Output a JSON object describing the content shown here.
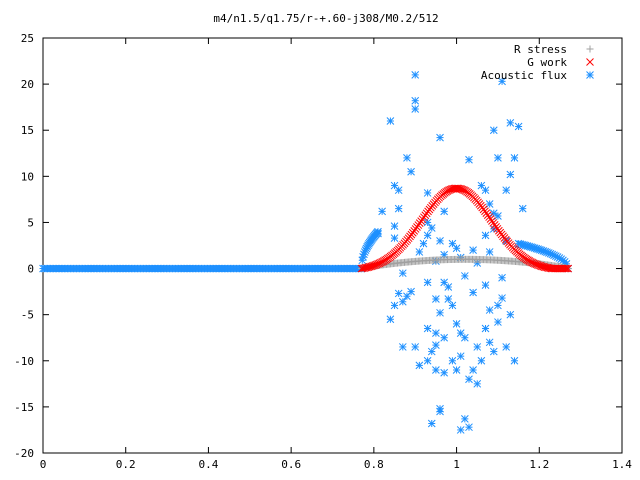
{
  "chart_data": {
    "type": "scatter",
    "title": "m4/n1.5/q1.75/r-+.60-j308/M0.2/512",
    "xlabel": "",
    "ylabel": "",
    "xlim": [
      0,
      1.4
    ],
    "ylim": [
      -20,
      25
    ],
    "x_ticks": [
      "0",
      "0.2",
      "0.4",
      "0.6",
      "0.8",
      "1",
      "1.2",
      "1.4"
    ],
    "y_ticks": [
      "-20",
      "-15",
      "-10",
      "-5",
      "0",
      "5",
      "10",
      "15",
      "20",
      "25"
    ],
    "grid": false,
    "legend_position": "top-right",
    "series": [
      {
        "name": "R stress",
        "marker": "plus",
        "color": "#a0a0a0",
        "curve": "bump",
        "x_range": [
          0.77,
          1.27
        ],
        "peak": 1.0,
        "n_points": 150
      },
      {
        "name": "G work",
        "marker": "x",
        "color": "#ff0000",
        "curve": "gaussian",
        "x_range": [
          0.77,
          1.27
        ],
        "peak_x": 1.0,
        "peak": 8.7,
        "n_points": 150
      },
      {
        "name": "Acoustic flux",
        "marker": "star",
        "color": "#1e90ff",
        "flat_segment": {
          "x_range": [
            0.0,
            0.77
          ],
          "y": 0,
          "n_points": 210
        },
        "left_arc": {
          "x_range": [
            0.77,
            0.81
          ],
          "y_end": 4.0
        },
        "right_arc": {
          "x_range": [
            1.15,
            1.27
          ],
          "y_start": 2.7
        },
        "points": [
          [
            0.9,
            21.0
          ],
          [
            1.11,
            20.3
          ],
          [
            0.9,
            18.2
          ],
          [
            0.9,
            17.3
          ],
          [
            0.84,
            16.0
          ],
          [
            1.13,
            15.8
          ],
          [
            1.15,
            15.4
          ],
          [
            1.09,
            15.0
          ],
          [
            0.96,
            14.2
          ],
          [
            1.1,
            12.0
          ],
          [
            0.88,
            12.0
          ],
          [
            1.14,
            12.0
          ],
          [
            1.03,
            11.8
          ],
          [
            0.89,
            10.5
          ],
          [
            1.13,
            10.2
          ],
          [
            0.85,
            9.0
          ],
          [
            1.06,
            9.0
          ],
          [
            0.86,
            8.5
          ],
          [
            1.07,
            8.5
          ],
          [
            0.93,
            8.2
          ],
          [
            1.12,
            8.5
          ],
          [
            1.08,
            7.0
          ],
          [
            0.86,
            6.5
          ],
          [
            1.16,
            6.5
          ],
          [
            0.82,
            6.2
          ],
          [
            0.97,
            6.2
          ],
          [
            1.09,
            6.0
          ],
          [
            1.1,
            5.7
          ],
          [
            0.93,
            5.0
          ],
          [
            0.85,
            4.6
          ],
          [
            0.94,
            4.4
          ],
          [
            1.09,
            4.3
          ],
          [
            0.81,
            3.8
          ],
          [
            0.93,
            3.6
          ],
          [
            1.07,
            3.6
          ],
          [
            0.85,
            3.3
          ],
          [
            0.96,
            3.0
          ],
          [
            1.12,
            3.0
          ],
          [
            0.92,
            2.7
          ],
          [
            0.99,
            2.7
          ],
          [
            1.0,
            2.2
          ],
          [
            1.04,
            2.0
          ],
          [
            0.91,
            1.8
          ],
          [
            1.08,
            1.8
          ],
          [
            0.97,
            1.5
          ],
          [
            1.01,
            1.2
          ],
          [
            0.95,
            0.8
          ],
          [
            1.05,
            0.6
          ],
          [
            0.87,
            -0.5
          ],
          [
            1.02,
            -0.8
          ],
          [
            1.11,
            -1.0
          ],
          [
            0.93,
            -1.5
          ],
          [
            0.97,
            -1.5
          ],
          [
            0.98,
            -2.0
          ],
          [
            1.07,
            -1.8
          ],
          [
            0.89,
            -2.5
          ],
          [
            0.86,
            -2.7
          ],
          [
            1.04,
            -2.6
          ],
          [
            0.88,
            -3.0
          ],
          [
            1.11,
            -3.2
          ],
          [
            0.95,
            -3.3
          ],
          [
            0.98,
            -3.3
          ],
          [
            1.1,
            -4.0
          ],
          [
            0.87,
            -3.6
          ],
          [
            0.85,
            -4.0
          ],
          [
            0.99,
            -4.0
          ],
          [
            1.08,
            -4.5
          ],
          [
            0.96,
            -4.8
          ],
          [
            1.13,
            -5.0
          ],
          [
            0.84,
            -5.5
          ],
          [
            1.1,
            -5.8
          ],
          [
            1.0,
            -6.0
          ],
          [
            0.93,
            -6.5
          ],
          [
            1.01,
            -7.0
          ],
          [
            0.95,
            -7.0
          ],
          [
            1.07,
            -6.5
          ],
          [
            1.02,
            -7.5
          ],
          [
            0.97,
            -7.5
          ],
          [
            1.12,
            -8.5
          ],
          [
            0.87,
            -8.5
          ],
          [
            0.9,
            -8.5
          ],
          [
            0.95,
            -8.3
          ],
          [
            1.05,
            -8.5
          ],
          [
            1.08,
            -8.0
          ],
          [
            0.94,
            -9.0
          ],
          [
            1.09,
            -9.0
          ],
          [
            1.01,
            -9.5
          ],
          [
            0.93,
            -10.0
          ],
          [
            0.99,
            -10.0
          ],
          [
            1.06,
            -10.0
          ],
          [
            1.14,
            -10.0
          ],
          [
            0.91,
            -10.5
          ],
          [
            1.0,
            -11.0
          ],
          [
            0.95,
            -11.0
          ],
          [
            1.04,
            -11.0
          ],
          [
            0.97,
            -11.3
          ],
          [
            1.03,
            -12.0
          ],
          [
            1.05,
            -12.5
          ],
          [
            0.96,
            -15.2
          ],
          [
            0.96,
            -15.5
          ],
          [
            0.94,
            -16.8
          ],
          [
            1.02,
            -16.3
          ],
          [
            1.03,
            -17.2
          ],
          [
            1.01,
            -17.5
          ]
        ]
      }
    ]
  }
}
